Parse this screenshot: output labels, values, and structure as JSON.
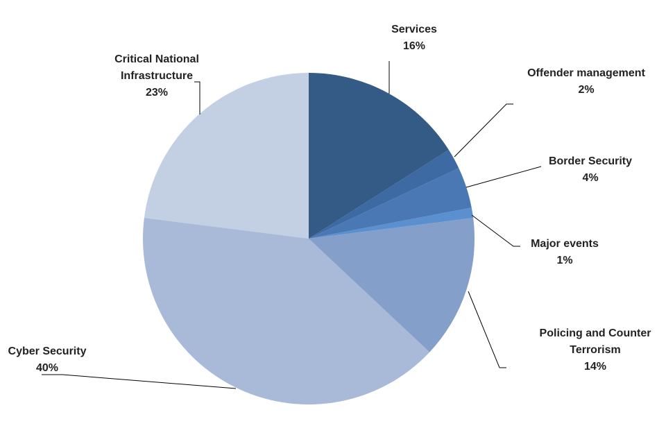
{
  "chart_data": {
    "type": "pie",
    "categories": [
      "Services",
      "Offender management",
      "Border Security",
      "Major events",
      "Policing and Counter Terrorism",
      "Cyber Security",
      "Critical National Infrastructure"
    ],
    "values": [
      16,
      2,
      4,
      1,
      14,
      40,
      23
    ],
    "value_labels": [
      "16%",
      "2%",
      "4%",
      "1%",
      "14%",
      "40%",
      "23%"
    ],
    "colors": [
      "#345a86",
      "#3d6aa3",
      "#4a78b5",
      "#5a8fd0",
      "#859fcb",
      "#a9b9d8",
      "#c3cfe3"
    ]
  }
}
